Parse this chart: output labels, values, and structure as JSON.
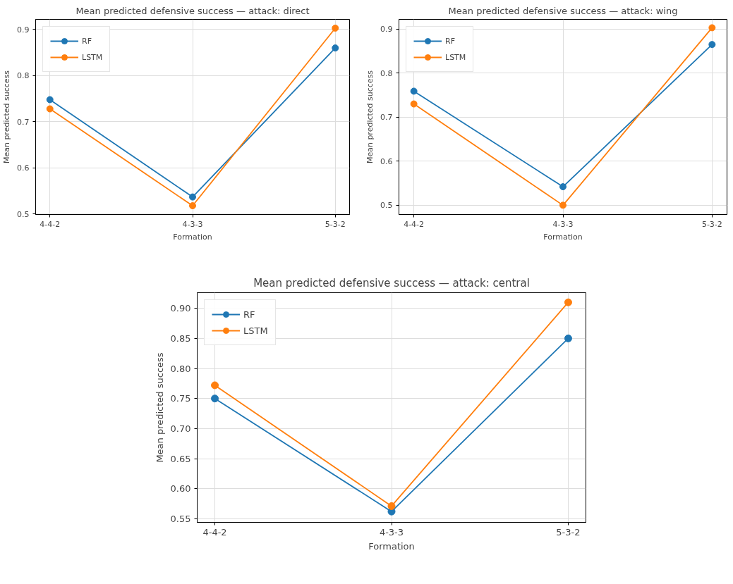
{
  "chart_data": [
    {
      "type": "line",
      "title": "Mean predicted defensive success — attack: direct",
      "xlabel": "Formation",
      "ylabel": "Mean predicted success",
      "categories": [
        "4-4-2",
        "4-3-3",
        "5-3-2"
      ],
      "series": [
        {
          "name": "RF",
          "color": "#1f77b4",
          "values": [
            0.748,
            0.537,
            0.86
          ]
        },
        {
          "name": "LSTM",
          "color": "#ff7f0e",
          "values": [
            0.728,
            0.518,
            0.903
          ]
        }
      ],
      "ylim": [
        0.499,
        0.922
      ],
      "yticks": [
        0.5,
        0.6,
        0.7,
        0.8,
        0.9
      ],
      "grid": true,
      "legend": "top left",
      "marker": "circle",
      "line_style": "solid"
    },
    {
      "type": "line",
      "title": "Mean predicted defensive success — attack: wing",
      "xlabel": "Formation",
      "ylabel": "Mean predicted success",
      "categories": [
        "4-4-2",
        "4-3-3",
        "5-3-2"
      ],
      "series": [
        {
          "name": "RF",
          "color": "#1f77b4",
          "values": [
            0.759,
            0.542,
            0.865
          ]
        },
        {
          "name": "LSTM",
          "color": "#ff7f0e",
          "values": [
            0.73,
            0.5,
            0.903
          ]
        }
      ],
      "ylim": [
        0.479,
        0.922
      ],
      "yticks": [
        0.5,
        0.6,
        0.7,
        0.8,
        0.9
      ],
      "grid": true,
      "legend": "top left",
      "marker": "circle",
      "line_style": "solid"
    },
    {
      "type": "line",
      "title": "Mean predicted defensive success — attack: central",
      "xlabel": "Formation",
      "ylabel": "Mean predicted success",
      "categories": [
        "4-4-2",
        "4-3-3",
        "5-3-2"
      ],
      "series": [
        {
          "name": "RF",
          "color": "#1f77b4",
          "values": [
            0.75,
            0.562,
            0.85
          ]
        },
        {
          "name": "LSTM",
          "color": "#ff7f0e",
          "values": [
            0.772,
            0.571,
            0.91
          ]
        }
      ],
      "ylim": [
        0.544,
        0.926
      ],
      "yticks": [
        {
          "value": 0.55,
          "label": "0.55"
        },
        {
          "value": 0.6,
          "label": "0.60"
        },
        {
          "value": 0.65,
          "label": "0.65"
        },
        {
          "value": 0.7,
          "label": "0.70"
        },
        {
          "value": 0.75,
          "label": "0.75"
        },
        {
          "value": 0.8,
          "label": "0.80"
        },
        {
          "value": 0.85,
          "label": "0.85"
        },
        {
          "value": 0.9,
          "label": "0.90"
        }
      ],
      "grid": true,
      "legend": "top left",
      "marker": "circle",
      "line_style": "solid"
    }
  ]
}
